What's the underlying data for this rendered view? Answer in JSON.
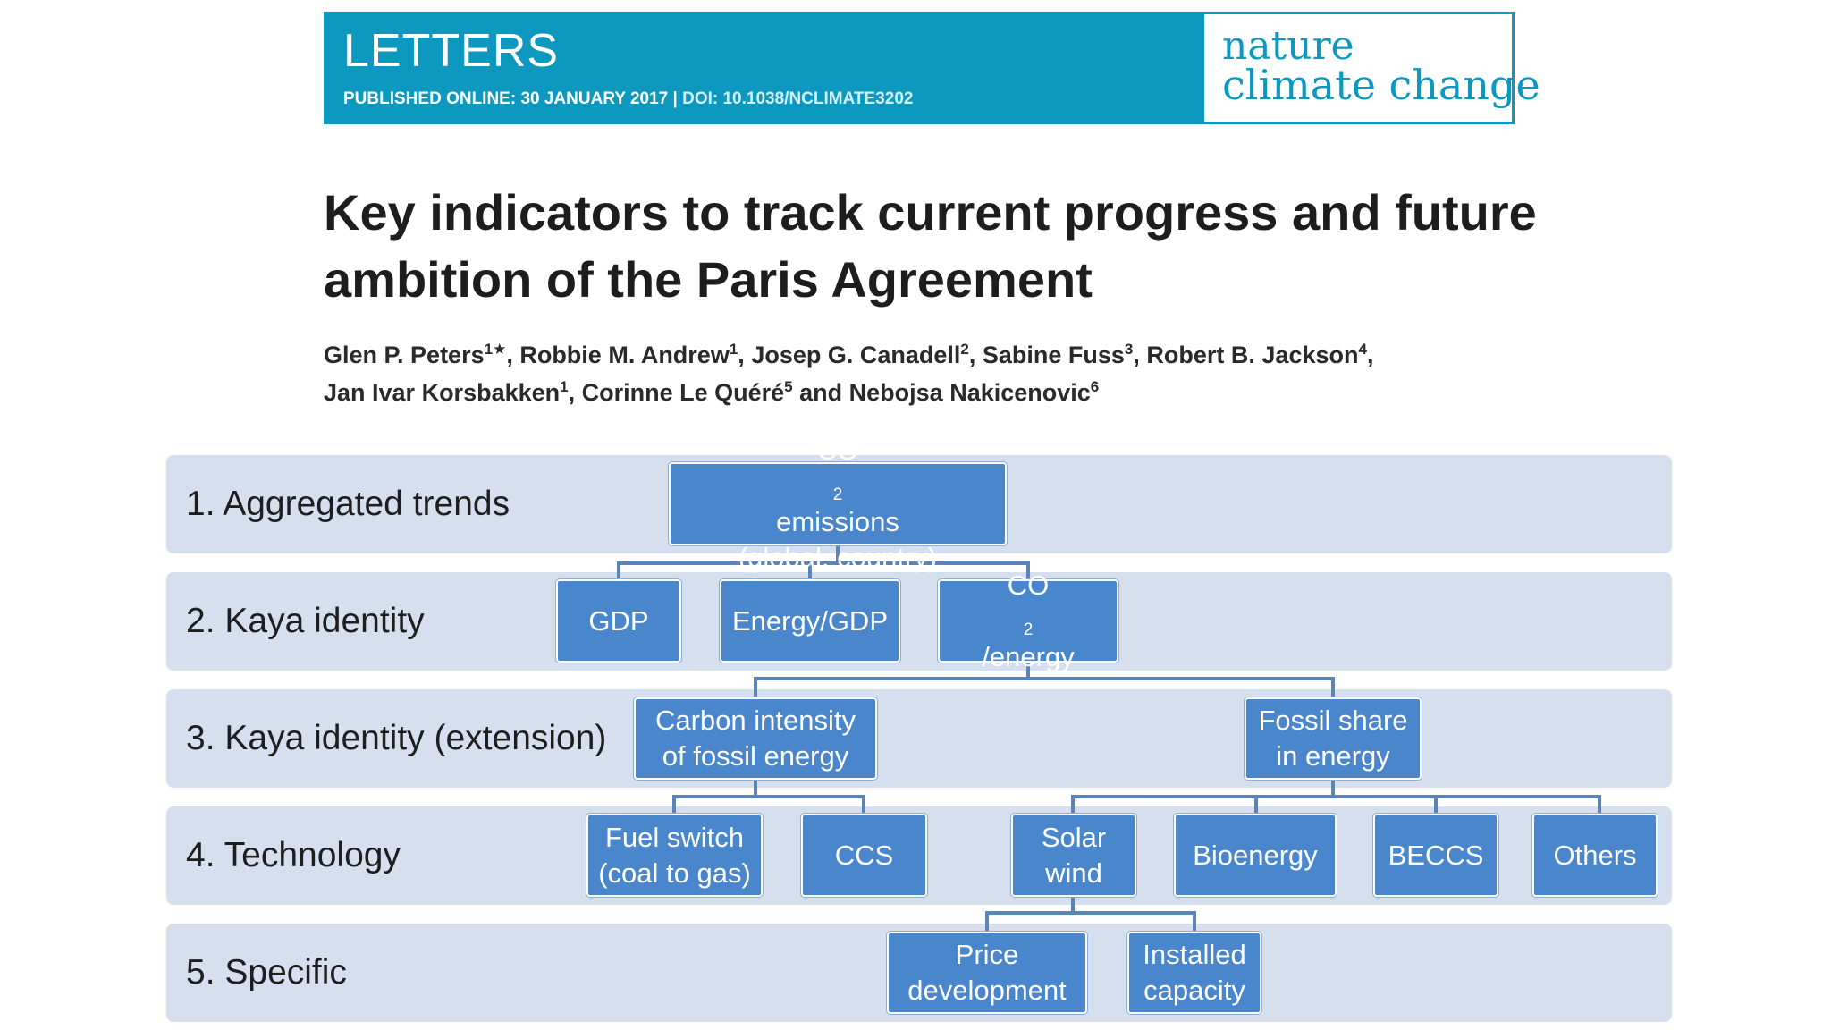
{
  "banner": {
    "section": "LETTERS",
    "published": "PUBLISHED ONLINE: 30 JANUARY 2017 | ",
    "doi": "DOI: 10.1038/NCLIMATE3202",
    "journal_line1": "nature",
    "journal_line2": "climate change"
  },
  "paper": {
    "title_line1": "Key indicators to track current progress and future",
    "title_line2": "ambition of the Paris Agreement",
    "authors": [
      [
        {
          "name": "Glen P. Peters",
          "sup": "1★",
          "sep": ", "
        },
        {
          "name": "Robbie M. Andrew",
          "sup": "1",
          "sep": ", "
        },
        {
          "name": "Josep G. Canadell",
          "sup": "2",
          "sep": ", "
        },
        {
          "name": "Sabine Fuss",
          "sup": "3",
          "sep": ", "
        },
        {
          "name": "Robert B. Jackson",
          "sup": "4",
          "sep": ","
        }
      ],
      [
        {
          "name": "Jan Ivar Korsbakken",
          "sup": "1",
          "sep": ", "
        },
        {
          "name": "Corinne Le Quéré",
          "sup": "5",
          "sep": " and "
        },
        {
          "name": "Nebojsa Nakicenovic",
          "sup": "6",
          "sep": ""
        }
      ]
    ]
  },
  "figure": {
    "levels": [
      {
        "label": "1. Aggregated trends"
      },
      {
        "label": "2. Kaya identity"
      },
      {
        "label": "3. Kaya identity (extension)"
      },
      {
        "label": "4. Technology"
      },
      {
        "label": "5. Specific"
      }
    ],
    "nodes": {
      "co2": {
        "line1_pre": "CO",
        "line1_sub": "2",
        "line1_post": " emissions",
        "line2": "(global, country)"
      },
      "gdp": {
        "line1": "GDP"
      },
      "energy_gdp": {
        "line1": "Energy/GDP"
      },
      "co2_energy": {
        "pre": "CO",
        "sub": "2",
        "post": "/energy"
      },
      "carbon_intensity": {
        "line1": "Carbon intensity",
        "line2": "of fossil energy"
      },
      "fossil_share": {
        "line1": "Fossil share",
        "line2": "in energy"
      },
      "fuel_switch": {
        "line1": "Fuel switch",
        "line2": "(coal to gas)"
      },
      "ccs": {
        "line1": "CCS"
      },
      "solar_wind": {
        "line1": "Solar",
        "line2": "wind"
      },
      "bioenergy": {
        "line1": "Bioenergy"
      },
      "beccs": {
        "line1": "BECCS"
      },
      "others": {
        "line1": "Others"
      },
      "price": {
        "line1": "Price",
        "line2": "development"
      },
      "capacity": {
        "line1": "Installed",
        "line2": "capacity"
      }
    },
    "colors": {
      "band": "#d6dfee",
      "node": "#4a86cc",
      "connector": "#5b84b8",
      "banner": "#0c98bf"
    }
  }
}
